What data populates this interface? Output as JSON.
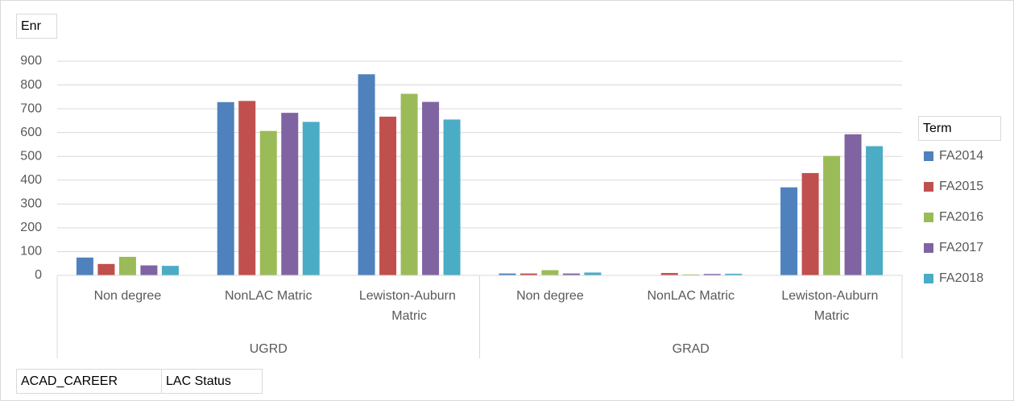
{
  "chart_data": {
    "type": "bar",
    "ylabel": "Enr",
    "legend_title": "Term",
    "field_buttons": [
      "ACAD_CAREER",
      "LAC Status"
    ],
    "category_groups": [
      {
        "name": "UGRD",
        "categories": [
          "Non degree",
          "NonLAC Matric",
          "Lewiston-Auburn Matric"
        ]
      },
      {
        "name": "GRAD",
        "categories": [
          "Non degree",
          "NonLAC Matric",
          "Lewiston-Auburn Matric"
        ]
      }
    ],
    "series": [
      {
        "name": "FA2014",
        "color": "#4f81bd",
        "values": [
          75,
          728,
          845,
          8,
          null,
          370
        ]
      },
      {
        "name": "FA2015",
        "color": "#c0504d",
        "values": [
          48,
          733,
          667,
          8,
          10,
          430
        ]
      },
      {
        "name": "FA2016",
        "color": "#9bbb59",
        "values": [
          78,
          607,
          763,
          22,
          4,
          502
        ]
      },
      {
        "name": "FA2017",
        "color": "#8064a2",
        "values": [
          42,
          683,
          729,
          8,
          6,
          593
        ]
      },
      {
        "name": "FA2018",
        "color": "#4bacc6",
        "values": [
          40,
          645,
          655,
          12,
          7,
          543
        ]
      }
    ],
    "ylim": [
      0,
      900
    ],
    "yticks": [
      0,
      100,
      200,
      300,
      400,
      500,
      600,
      700,
      800,
      900
    ],
    "grid": true
  }
}
